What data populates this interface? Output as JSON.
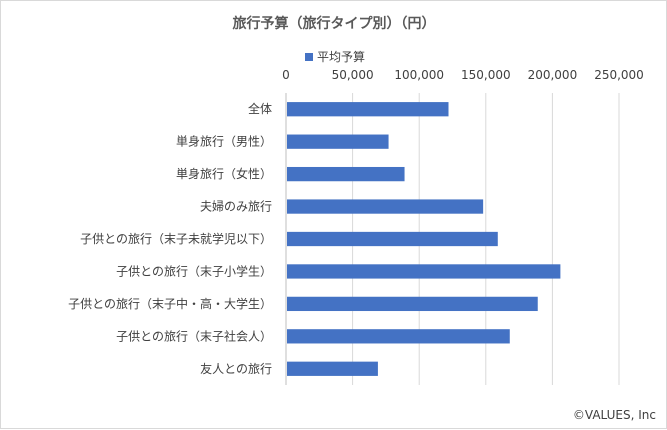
{
  "chart_data": {
    "type": "bar",
    "orientation": "horizontal",
    "title": "旅行予算（旅行タイプ別）（円）",
    "categories": [
      "全体",
      "単身旅行（男性）",
      "単身旅行（女性）",
      "夫婦のみ旅行",
      "子供との旅行（末子未就学児以下）",
      "子供との旅行（末子小学生）",
      "子供との旅行（末子中・高・大学生）",
      "子供との旅行（末子社会人）",
      "友人との旅行"
    ],
    "series": [
      {
        "name": "平均予算",
        "color": "#4472c4",
        "values": [
          122000,
          77000,
          89000,
          148000,
          159000,
          206000,
          189000,
          168000,
          69000
        ]
      }
    ],
    "x_ticks": [
      "0",
      "50,000",
      "100,000",
      "150,000",
      "200,000",
      "250,000"
    ],
    "xlim": [
      0,
      250000
    ],
    "x_axis_position": "top",
    "grid": true,
    "legend_position": "top",
    "credit": "©VALUES, Inc"
  }
}
